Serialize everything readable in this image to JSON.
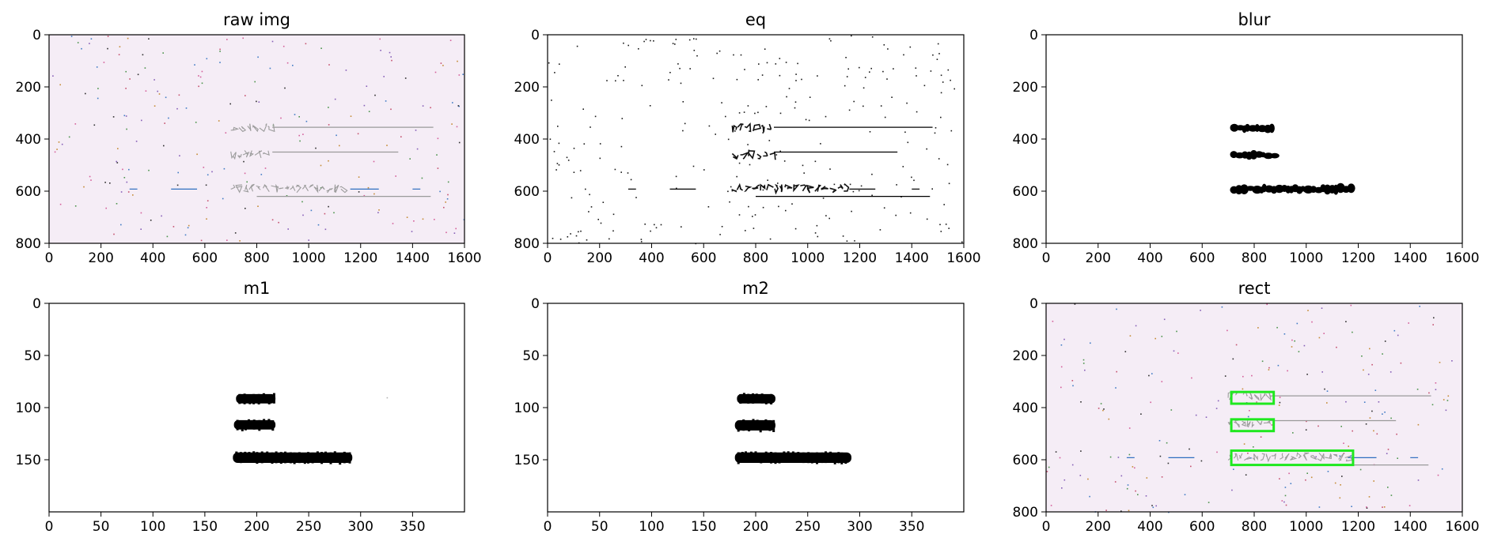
{
  "chart_data": [
    {
      "type": "image",
      "title": "raw img",
      "background": "#f5edf6",
      "xlim": [
        0,
        1600
      ],
      "ylim": [
        800,
        0
      ],
      "xticks": [
        0,
        200,
        400,
        600,
        800,
        1000,
        1200,
        1400,
        1600
      ],
      "yticks": [
        0,
        200,
        400,
        600,
        800
      ],
      "content": {
        "text_rows": [
          {
            "x1": 700,
            "x2": 860,
            "y": 355,
            "style": "faint"
          },
          {
            "x1": 700,
            "x2": 860,
            "y": 460,
            "style": "faint"
          },
          {
            "x1": 700,
            "x2": 1160,
            "y": 590,
            "style": "faint"
          }
        ],
        "lines": [
          {
            "x1": 860,
            "x2": 1480,
            "y": 355,
            "color": "#9a9a9a"
          },
          {
            "x1": 860,
            "x2": 1345,
            "y": 450,
            "color": "#9a9a9a"
          },
          {
            "x1": 1160,
            "x2": 1270,
            "y": 592,
            "color": "#2f6fc0"
          },
          {
            "x1": 800,
            "x2": 1470,
            "y": 620,
            "color": "#9a9a9a"
          },
          {
            "x1": 310,
            "x2": 340,
            "y": 592,
            "color": "#2f6fc0"
          },
          {
            "x1": 470,
            "x2": 570,
            "y": 592,
            "color": "#2f6fc0"
          },
          {
            "x1": 1400,
            "x2": 1430,
            "y": 592,
            "color": "#2f6fc0"
          }
        ],
        "noise": "colored"
      }
    },
    {
      "type": "image",
      "title": "eq",
      "background": "#ffffff",
      "xlim": [
        0,
        1600
      ],
      "ylim": [
        800,
        0
      ],
      "xticks": [
        0,
        200,
        400,
        600,
        800,
        1000,
        1200,
        1400,
        1600
      ],
      "yticks": [
        0,
        200,
        400,
        600,
        800
      ],
      "content": {
        "text_rows": [
          {
            "x1": 710,
            "x2": 870,
            "y": 358,
            "style": "dark"
          },
          {
            "x1": 710,
            "x2": 870,
            "y": 462,
            "style": "dark"
          },
          {
            "x1": 710,
            "x2": 1160,
            "y": 590,
            "style": "dark"
          }
        ],
        "lines": [
          {
            "x1": 870,
            "x2": 1480,
            "y": 355,
            "color": "#000000"
          },
          {
            "x1": 870,
            "x2": 1345,
            "y": 450,
            "color": "#000000"
          },
          {
            "x1": 1160,
            "x2": 1260,
            "y": 592,
            "color": "#000000"
          },
          {
            "x1": 800,
            "x2": 1470,
            "y": 620,
            "color": "#000000"
          },
          {
            "x1": 310,
            "x2": 340,
            "y": 592,
            "color": "#000000"
          },
          {
            "x1": 470,
            "x2": 570,
            "y": 592,
            "color": "#000000"
          },
          {
            "x1": 1400,
            "x2": 1430,
            "y": 592,
            "color": "#000000"
          }
        ],
        "noise": "black"
      }
    },
    {
      "type": "image",
      "title": "blur",
      "background": "#ffffff",
      "xlim": [
        0,
        1600
      ],
      "ylim": [
        800,
        0
      ],
      "xticks": [
        0,
        200,
        400,
        600,
        800,
        1000,
        1200,
        1400,
        1600
      ],
      "yticks": [
        0,
        200,
        400,
        600,
        800
      ],
      "content": {
        "text_rows": [
          {
            "x1": 710,
            "x2": 870,
            "y": 358,
            "style": "blob"
          },
          {
            "x1": 710,
            "x2": 870,
            "y": 462,
            "style": "blob"
          },
          {
            "x1": 710,
            "x2": 1170,
            "y": 592,
            "style": "blob"
          }
        ],
        "lines": [],
        "noise": "none"
      }
    },
    {
      "type": "image",
      "title": "m1",
      "background": "#ffffff",
      "xlim": [
        0,
        400
      ],
      "ylim": [
        200,
        0
      ],
      "xticks": [
        0,
        50,
        100,
        150,
        200,
        250,
        300,
        350
      ],
      "yticks": [
        0,
        50,
        100,
        150
      ],
      "content": {
        "bars": [
          {
            "x1": 180,
            "x2": 218,
            "y1": 87,
            "y2": 96
          },
          {
            "x1": 178,
            "x2": 218,
            "y1": 112,
            "y2": 121
          },
          {
            "x1": 177,
            "x2": 292,
            "y1": 143,
            "y2": 153
          }
        ],
        "lines": [],
        "noise": "sparse"
      }
    },
    {
      "type": "image",
      "title": "m2",
      "background": "#ffffff",
      "xlim": [
        0,
        400
      ],
      "ylim": [
        200,
        0
      ],
      "xticks": [
        0,
        50,
        100,
        150,
        200,
        250,
        300,
        350
      ],
      "yticks": [
        0,
        50,
        100,
        150
      ],
      "content": {
        "bars": [
          {
            "x1": 182,
            "x2": 219,
            "y1": 87,
            "y2": 96
          },
          {
            "x1": 180,
            "x2": 219,
            "y1": 112,
            "y2": 122
          },
          {
            "x1": 180,
            "x2": 292,
            "y1": 143,
            "y2": 153
          }
        ],
        "lines": [],
        "noise": "none"
      }
    },
    {
      "type": "image",
      "title": "rect",
      "background": "#f5edf6",
      "xlim": [
        0,
        1600
      ],
      "ylim": [
        800,
        0
      ],
      "xticks": [
        0,
        200,
        400,
        600,
        800,
        1000,
        1200,
        1400,
        1600
      ],
      "yticks": [
        0,
        200,
        400,
        600,
        800
      ],
      "content": {
        "text_rows": [
          {
            "x1": 700,
            "x2": 860,
            "y": 355,
            "style": "faint"
          },
          {
            "x1": 700,
            "x2": 860,
            "y": 460,
            "style": "faint"
          },
          {
            "x1": 700,
            "x2": 1160,
            "y": 590,
            "style": "faint"
          }
        ],
        "lines": [
          {
            "x1": 860,
            "x2": 1480,
            "y": 355,
            "color": "#9a9a9a"
          },
          {
            "x1": 860,
            "x2": 1345,
            "y": 450,
            "color": "#9a9a9a"
          },
          {
            "x1": 1160,
            "x2": 1270,
            "y": 592,
            "color": "#2f6fc0"
          },
          {
            "x1": 800,
            "x2": 1470,
            "y": 620,
            "color": "#9a9a9a"
          },
          {
            "x1": 310,
            "x2": 340,
            "y": 592,
            "color": "#2f6fc0"
          },
          {
            "x1": 470,
            "x2": 570,
            "y": 592,
            "color": "#2f6fc0"
          },
          {
            "x1": 1400,
            "x2": 1430,
            "y": 592,
            "color": "#2f6fc0"
          }
        ],
        "boxes": [
          {
            "x1": 712,
            "x2": 875,
            "y1": 340,
            "y2": 385,
            "color": "#1fe81f"
          },
          {
            "x1": 712,
            "x2": 875,
            "y1": 445,
            "y2": 490,
            "color": "#1fe81f"
          },
          {
            "x1": 712,
            "x2": 1180,
            "y1": 565,
            "y2": 620,
            "color": "#1fe81f"
          }
        ],
        "noise": "colored"
      }
    }
  ]
}
